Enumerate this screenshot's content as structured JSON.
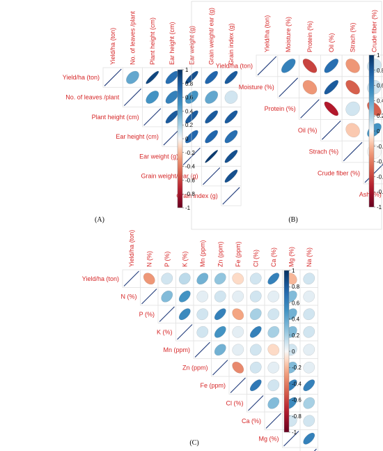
{
  "chart_data": [
    {
      "type": "heatmap",
      "subtype": "upper-triangle correlation ellipse plot",
      "panel_label": "(A)",
      "variables": [
        "Yield/ha (ton)",
        "No. of leaves /plant",
        "Plant height (cm)",
        "Ear height (cm)",
        "Ear weight (g)",
        "Grain weight/ ear (g)",
        "Grain index (g)"
      ],
      "matrix": [
        [
          1,
          0.4,
          0.9,
          0.7,
          0.85,
          0.75,
          0.8
        ],
        [
          null,
          1,
          0.5,
          0.6,
          0.5,
          0.4,
          0.1
        ],
        [
          null,
          null,
          1,
          0.8,
          0.8,
          0.8,
          0.8
        ],
        [
          null,
          null,
          null,
          1,
          0.75,
          0.75,
          0.7
        ],
        [
          null,
          null,
          null,
          null,
          1,
          0.95,
          0.85
        ],
        [
          null,
          null,
          null,
          null,
          null,
          1,
          0.85
        ],
        [
          null,
          null,
          null,
          null,
          null,
          null,
          1
        ]
      ],
      "colorbar": {
        "ticks": [
          "1",
          "0.8",
          "0.6",
          "0.4",
          "0.2",
          "0",
          "-0.2",
          "-0.4",
          "-0.6",
          "-0.8",
          "-1"
        ],
        "range": [
          -1,
          1
        ]
      }
    },
    {
      "type": "heatmap",
      "subtype": "upper-triangle correlation ellipse plot",
      "panel_label": "(B)",
      "variables": [
        "Yield/ha (ton)",
        "Moisture (%)",
        "Protein (%)",
        "Oil (%)",
        "Strach (%)",
        "Crude fiber (%)",
        "Ash (%)"
      ],
      "matrix": [
        [
          1,
          0.6,
          -0.6,
          0.7,
          -0.3,
          0.1,
          0.5
        ],
        [
          null,
          1,
          -0.3,
          0.8,
          -0.5,
          0.1,
          0.7
        ],
        [
          null,
          null,
          1,
          -0.75,
          0.1,
          -0.5,
          -0.5
        ],
        [
          null,
          null,
          null,
          1,
          -0.15,
          0.5,
          0.85
        ],
        [
          null,
          null,
          null,
          null,
          1,
          0.0,
          -0.4
        ],
        [
          null,
          null,
          null,
          null,
          null,
          1,
          0.3
        ],
        [
          null,
          null,
          null,
          null,
          null,
          null,
          1
        ]
      ],
      "colorbar": {
        "ticks": [
          "1",
          "0.8",
          "0.6",
          "0.4",
          "0.2",
          "0",
          "-0.2",
          "-0.4",
          "-0.6",
          "-0.8",
          "-1"
        ],
        "range": [
          -1,
          1
        ]
      }
    },
    {
      "type": "heatmap",
      "subtype": "upper-triangle correlation ellipse plot",
      "panel_label": "(C)",
      "variables": [
        "Yield/ha (ton)",
        "N (%)",
        "P (%)",
        "K (%)",
        "Mn (ppm)",
        "Zn (ppm)",
        "Fe (ppm)",
        "Cl (%)",
        "Ca (%)",
        "Mg (%)",
        "Na (%)"
      ],
      "matrix": [
        [
          1,
          -0.3,
          0.1,
          0.15,
          0.35,
          0.25,
          -0.1,
          0.1,
          0.6,
          -0.2,
          0.1
        ],
        [
          null,
          1,
          0.3,
          0.5,
          0.05,
          0.1,
          0.05,
          0.1,
          0.05,
          0.3,
          0.05
        ],
        [
          null,
          null,
          1,
          0.55,
          0.1,
          0.6,
          -0.25,
          0.2,
          0.1,
          0.35,
          0.1
        ],
        [
          null,
          null,
          null,
          1,
          0.1,
          0.5,
          0.05,
          0.6,
          0.2,
          0.3,
          0.1
        ],
        [
          null,
          null,
          null,
          null,
          1,
          0.35,
          0.05,
          0.1,
          -0.1,
          0.1,
          0.05
        ],
        [
          null,
          null,
          null,
          null,
          null,
          1,
          -0.35,
          0.1,
          0.05,
          0.3,
          0.05
        ],
        [
          null,
          null,
          null,
          null,
          null,
          null,
          1,
          0.65,
          0.1,
          0.6,
          0.6
        ],
        [
          null,
          null,
          null,
          null,
          null,
          null,
          null,
          1,
          0.3,
          0.55,
          0.2
        ],
        [
          null,
          null,
          null,
          null,
          null,
          null,
          null,
          null,
          1,
          0.1,
          0.1
        ],
        [
          null,
          null,
          null,
          null,
          null,
          null,
          null,
          null,
          null,
          1,
          0.6
        ],
        [
          null,
          null,
          null,
          null,
          null,
          null,
          null,
          null,
          null,
          null,
          1
        ]
      ],
      "colorbar": {
        "ticks": [
          "1",
          "0.8",
          "0.6",
          "0.4",
          "0.2",
          "0",
          "-0.2",
          "-0.4",
          "-0.6",
          "-0.8",
          "-1"
        ],
        "range": [
          -1,
          1
        ]
      }
    }
  ]
}
